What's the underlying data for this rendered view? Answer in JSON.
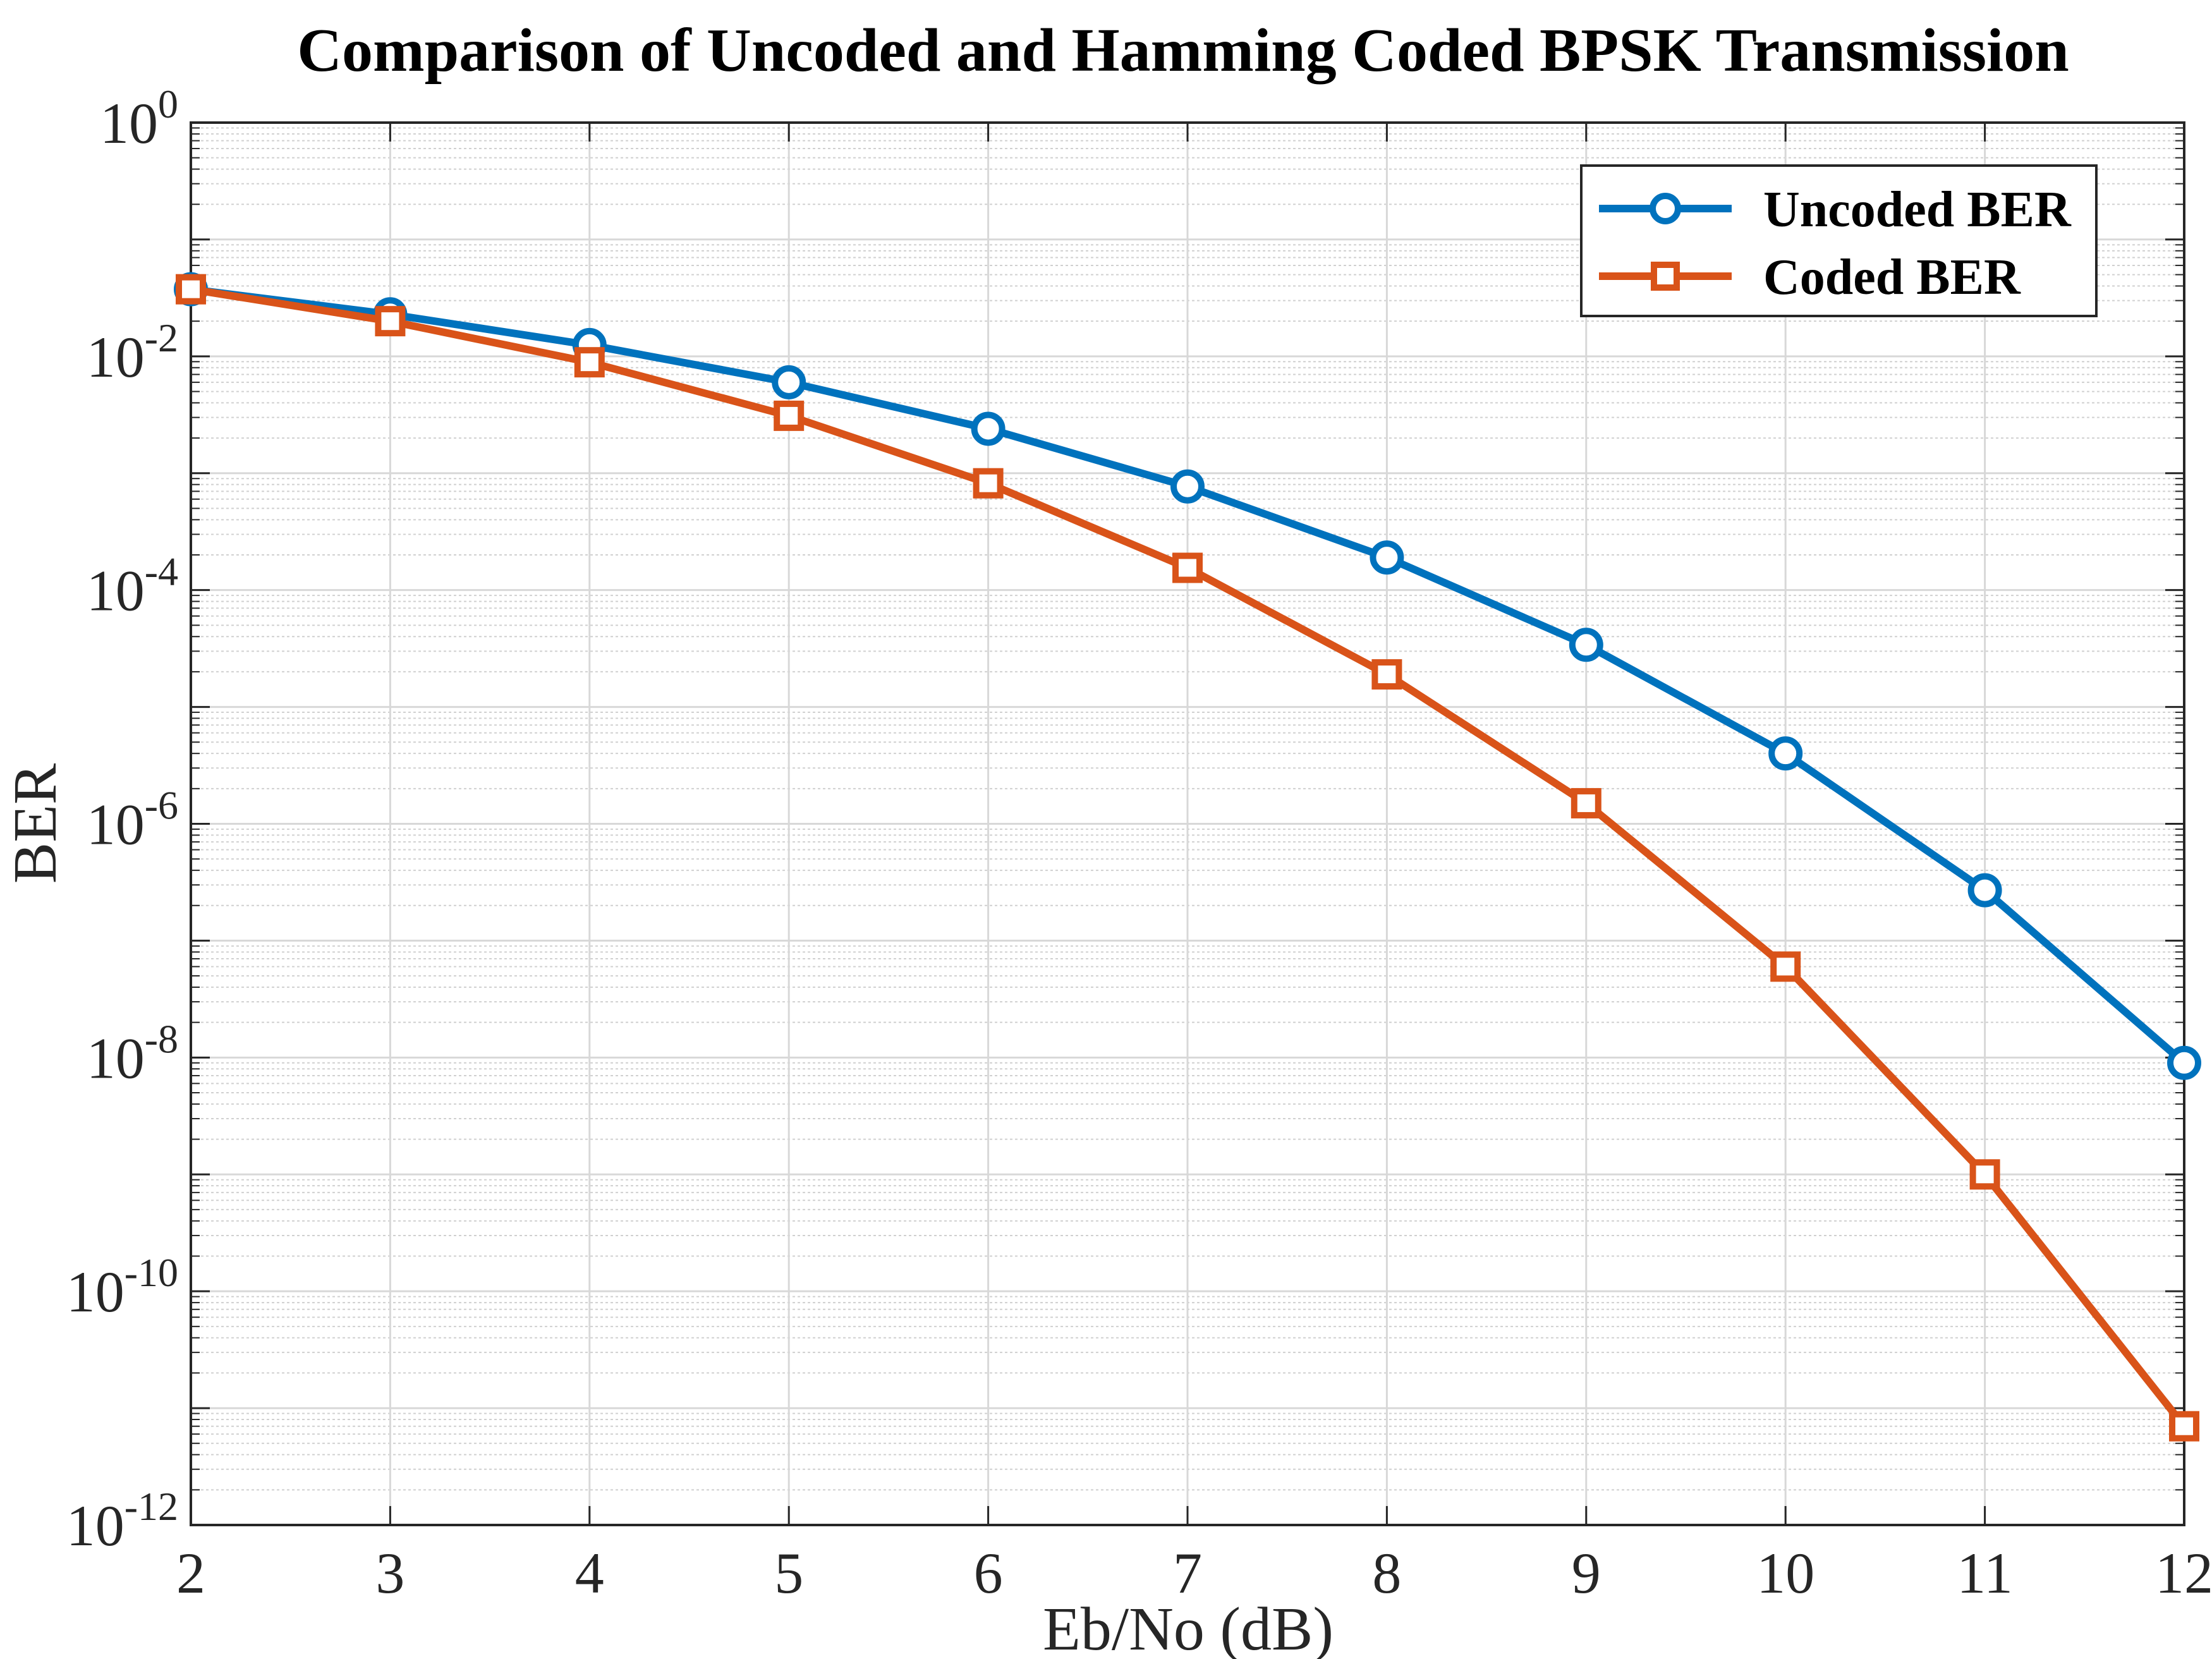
{
  "chart_data": {
    "type": "line",
    "title": "Comparison of Uncoded and Hamming Coded BPSK Transmission",
    "xlabel": "Eb/No (dB)",
    "ylabel": "BER",
    "yscale": "log",
    "xlim": [
      2,
      12
    ],
    "ylim": [
      1e-12,
      1
    ],
    "grid": true,
    "minor_grid": true,
    "legend_position": "top-right",
    "x_ticks": [
      2,
      3,
      4,
      5,
      6,
      7,
      8,
      9,
      10,
      11,
      12
    ],
    "y_ticks": [
      {
        "base": "10",
        "exp": "0",
        "value": 1
      },
      {
        "base": "10",
        "exp": "-2",
        "value": 0.01
      },
      {
        "base": "10",
        "exp": "-4",
        "value": 0.0001
      },
      {
        "base": "10",
        "exp": "-6",
        "value": 1e-06
      },
      {
        "base": "10",
        "exp": "-8",
        "value": 1e-08
      },
      {
        "base": "10",
        "exp": "-10",
        "value": 1e-10
      },
      {
        "base": "10",
        "exp": "-12",
        "value": 1e-12
      }
    ],
    "x": [
      2,
      3,
      4,
      5,
      6,
      7,
      8,
      9,
      10,
      11,
      12
    ],
    "series": [
      {
        "name": "Uncoded BER",
        "color": "#0072BD",
        "marker": "circle",
        "values": [
          0.0375,
          0.0229,
          0.0125,
          0.006,
          0.0024,
          0.00077,
          0.00019,
          3.4e-05,
          4e-06,
          2.7e-07,
          9e-09
        ]
      },
      {
        "name": "Coded BER",
        "color": "#D95319",
        "marker": "square",
        "values": [
          0.0375,
          0.02,
          0.0089,
          0.0031,
          0.00082,
          0.000155,
          1.9e-05,
          1.5e-06,
          6e-08,
          1e-09,
          7e-12
        ]
      }
    ]
  }
}
